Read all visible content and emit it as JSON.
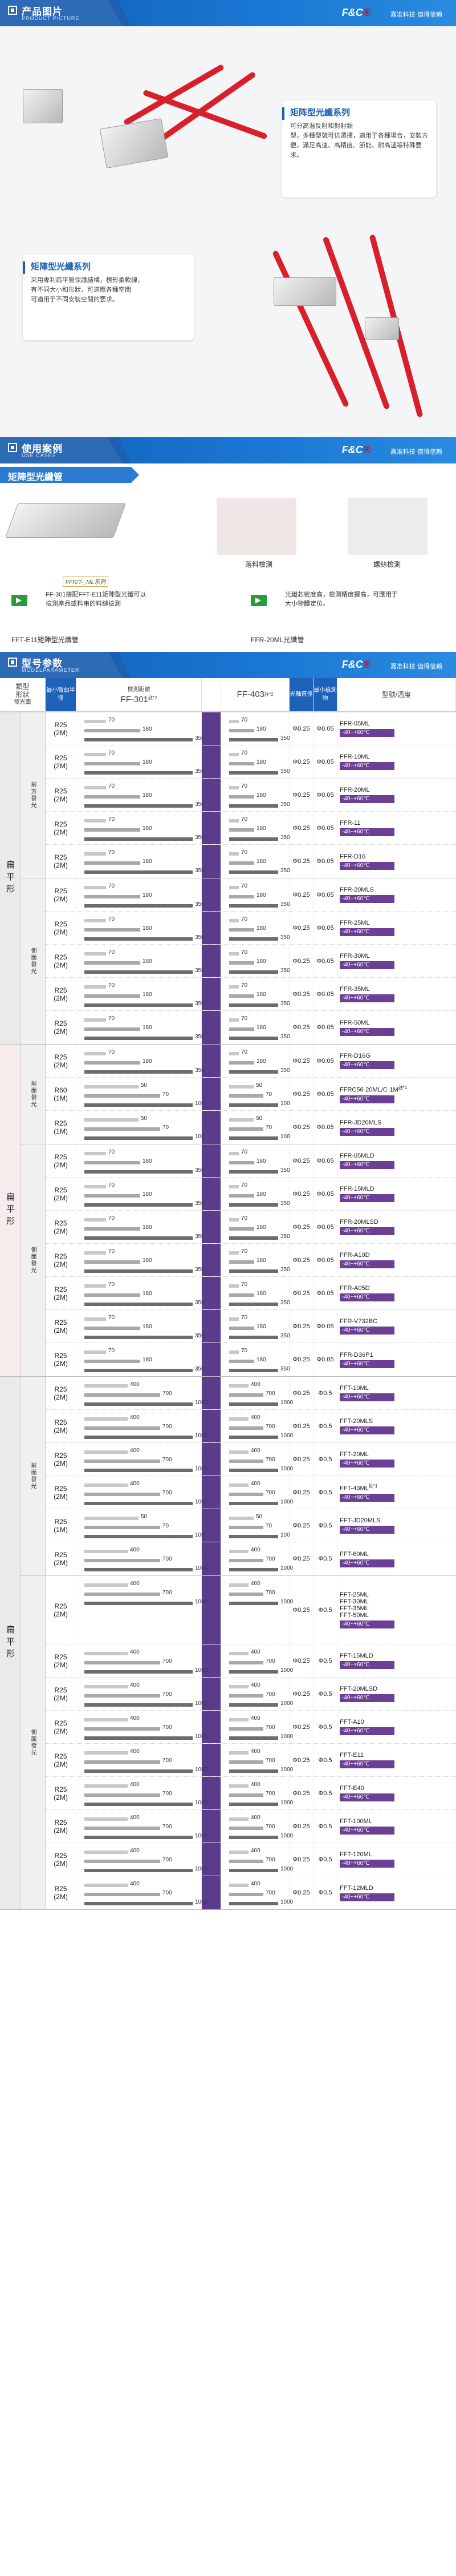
{
  "banners": {
    "picture": {
      "title": "产品图片",
      "subtitle": "PRODUCT PICTURE"
    },
    "cases": {
      "title": "使用案例",
      "subtitle": "USE CASES"
    },
    "params": {
      "title": "型号参数",
      "subtitle": "MODELPARAMETER"
    },
    "logo_prefix": "F&C",
    "logo_mark": "®",
    "slogan": "嘉准科技 值得信赖"
  },
  "hero": {
    "box1": {
      "title": "矩阵型光纖系列",
      "body": "可分高温反射和對射類\n型，多種型號可供選擇，適用于各種場合，安裝方便，滿足高速、高精度、節能、耐高溫等特殊要求。"
    },
    "box2": {
      "title": "矩陣型光纖系列",
      "body": "采用專利扁平管保護結構，楞形柔軟線，\n有不同大小和形狀，可適應各種空間\n可適用于不同安裝空間的要求。"
    }
  },
  "cases": {
    "section_title": "矩陣型光纖管",
    "labels": {
      "c1": "落料檢測",
      "c2": "螺絲檢測"
    },
    "tag": "FFR/T-_ML系列",
    "desc_left": "FF-301搭配FFT-E11矩陣型光纖可以\n檢測產品或料串的料縫檢測",
    "desc_right": "光纖芯密度高，檢測精度提高，可應用于\n大小物體定位。",
    "caption_left": "FFT-E11矩陣型光纖管",
    "caption_right": "FFR-20ML光纖管"
  },
  "table": {
    "head": {
      "type": "類型",
      "shape": "形狀",
      "shape2": "發光面",
      "bend": "最小彎曲半徑",
      "dist": "檢測距離",
      "amp1": "FF-301",
      "amp1_sup": "註*2",
      "amp2": "FF-403",
      "amp2_sup": "註*2",
      "dia": "光軸直徑",
      "dia2": "最小檢測物",
      "model": "型號/溫度"
    },
    "groups": [
      {
        "shape": "扁平形",
        "subs": [
          {
            "name": "前方發光",
            "rows": [
              {
                "r": "R25\n(2M)",
                "a": [
                  70,
                  180,
                  350
                ],
                "b": [
                  70,
                  180,
                  350
                ],
                "d1": "Φ0.25",
                "d2": "Φ0.05",
                "model": "FFR-05ML",
                "temp": "-40~+60℃"
              },
              {
                "r": "R25\n(2M)",
                "a": [
                  70,
                  180,
                  350
                ],
                "b": [
                  70,
                  180,
                  350
                ],
                "d1": "Φ0.25",
                "d2": "Φ0.05",
                "model": "FFR-10ML",
                "temp": "-40~+60℃"
              },
              {
                "r": "R25\n(2M)",
                "a": [
                  70,
                  180,
                  350
                ],
                "b": [
                  70,
                  180,
                  350
                ],
                "d1": "Φ0.25",
                "d2": "Φ0.05",
                "model": "FFR-20ML",
                "temp": "-40~+60℃"
              },
              {
                "r": "R25\n(2M)",
                "a": [
                  70,
                  180,
                  350
                ],
                "b": [
                  70,
                  180,
                  350
                ],
                "d1": "Φ0.25",
                "d2": "Φ0.05",
                "model": "FFR-11",
                "temp": "-40~+60℃"
              },
              {
                "r": "R25\n(2M)",
                "a": [
                  70,
                  180,
                  350
                ],
                "b": [
                  70,
                  180,
                  350
                ],
                "d1": "Φ0.25",
                "d2": "Φ0.05",
                "model": "FFR-D16",
                "temp": "-40~+60℃"
              }
            ]
          },
          {
            "name": "側面發光",
            "rows": [
              {
                "r": "R25\n(2M)",
                "a": [
                  70,
                  180,
                  350
                ],
                "b": [
                  70,
                  180,
                  350
                ],
                "d1": "Φ0.25",
                "d2": "Φ0.05",
                "model": "FFR-20MLS",
                "temp": "-40~+60℃"
              },
              {
                "r": "R25\n(2M)",
                "a": [
                  70,
                  180,
                  350
                ],
                "b": [
                  70,
                  180,
                  350
                ],
                "d1": "Φ0.25",
                "d2": "Φ0.05",
                "model": "FFR-25ML",
                "temp": "-40~+60℃"
              },
              {
                "r": "R25\n(2M)",
                "a": [
                  70,
                  180,
                  350
                ],
                "b": [
                  70,
                  180,
                  350
                ],
                "d1": "Φ0.25",
                "d2": "Φ0.05",
                "model": "FFR-30ML",
                "temp": "-40~+60℃"
              },
              {
                "r": "R25\n(2M)",
                "a": [
                  70,
                  180,
                  350
                ],
                "b": [
                  70,
                  180,
                  350
                ],
                "d1": "Φ0.25",
                "d2": "Φ0.05",
                "model": "FFR-35ML",
                "temp": "-40~+60℃"
              },
              {
                "r": "R25\n(2M)",
                "a": [
                  70,
                  180,
                  350
                ],
                "b": [
                  70,
                  180,
                  350
                ],
                "d1": "Φ0.25",
                "d2": "Φ0.05",
                "model": "FFR-50ML",
                "temp": "-40~+60℃"
              }
            ]
          }
        ]
      },
      {
        "shape": "扁平形",
        "subs": [
          {
            "name": "前面發光",
            "rows": [
              {
                "r": "R25\n(2M)",
                "a": [
                  70,
                  180,
                  350
                ],
                "b": [
                  70,
                  180,
                  350
                ],
                "d1": "Φ0.25",
                "d2": "Φ0.05",
                "model": "FFR-D16G",
                "temp": "-40~+60℃"
              },
              {
                "r": "R60\n(1M)",
                "a": [
                  50,
                  70,
                  100
                ],
                "b": [
                  50,
                  70,
                  100
                ],
                "d1": "Φ0.25",
                "d2": "Φ0.05",
                "model": "FFRC56-20ML/C-1M",
                "note": "註*1",
                "temp": "-40~+60℃"
              },
              {
                "r": "R25\n(1M)",
                "a": [
                  50,
                  70,
                  100
                ],
                "b": [
                  50,
                  70,
                  100
                ],
                "d1": "Φ0.25",
                "d2": "Φ0.05",
                "model": "FFR-JD20MLS",
                "temp": "-40~+60℃"
              }
            ]
          },
          {
            "name": "側面發光",
            "rows": [
              {
                "r": "R25\n(2M)",
                "a": [
                  70,
                  180,
                  350
                ],
                "b": [
                  70,
                  180,
                  350
                ],
                "d1": "Φ0.25",
                "d2": "Φ0.05",
                "model": "FFR-05MLD",
                "temp": "-40~+60℃"
              },
              {
                "r": "R25\n(2M)",
                "a": [
                  70,
                  180,
                  350
                ],
                "b": [
                  70,
                  180,
                  350
                ],
                "d1": "Φ0.25",
                "d2": "Φ0.05",
                "model": "FFR-15MLD",
                "temp": "-40~+60℃"
              },
              {
                "r": "R25\n(2M)",
                "a": [
                  70,
                  180,
                  350
                ],
                "b": [
                  70,
                  180,
                  350
                ],
                "d1": "Φ0.25",
                "d2": "Φ0.05",
                "model": "FFR-20MLSD",
                "temp": "-40~+60℃"
              },
              {
                "r": "R25\n(2M)",
                "a": [
                  70,
                  180,
                  350
                ],
                "b": [
                  70,
                  180,
                  350
                ],
                "d1": "Φ0.25",
                "d2": "Φ0.05",
                "model": "FFR-A10D",
                "temp": "-40~+60℃"
              },
              {
                "r": "R25\n(2M)",
                "a": [
                  70,
                  180,
                  350
                ],
                "b": [
                  70,
                  180,
                  350
                ],
                "d1": "Φ0.25",
                "d2": "Φ0.05",
                "model": "FFR-A05D",
                "temp": "-40~+60℃"
              },
              {
                "r": "R25\n(2M)",
                "a": [
                  70,
                  180,
                  350
                ],
                "b": [
                  70,
                  180,
                  350
                ],
                "d1": "Φ0.25",
                "d2": "Φ0.05",
                "model": "FFR-V732BC",
                "temp": "-40~+60℃"
              },
              {
                "r": "R25\n(2M)",
                "a": [
                  70,
                  180,
                  350
                ],
                "b": [
                  70,
                  180,
                  350
                ],
                "d1": "Φ0.25",
                "d2": "Φ0.05",
                "model": "FFR-D36P1",
                "temp": "-40~+60℃"
              }
            ]
          }
        ]
      },
      {
        "shape": "扁平形",
        "subs": [
          {
            "name": "前面發光",
            "rows": [
              {
                "r": "R25\n(2M)",
                "a": [
                  400,
                  700,
                  1000
                ],
                "b": [
                  400,
                  700,
                  1000
                ],
                "d1": "Φ0.25",
                "d2": "Φ0.5",
                "model": "FFT-10ML",
                "temp": "-40~+60℃"
              },
              {
                "r": "R25\n(2M)",
                "a": [
                  400,
                  700,
                  1000
                ],
                "b": [
                  400,
                  700,
                  1000
                ],
                "d1": "Φ0.25",
                "d2": "Φ0.5",
                "model": "FFT-20MLS",
                "temp": "-40~+60℃"
              },
              {
                "r": "R25\n(2M)",
                "a": [
                  400,
                  700,
                  1000
                ],
                "b": [
                  400,
                  700,
                  1000
                ],
                "d1": "Φ0.25",
                "d2": "Φ0.5",
                "model": "FFT-20ML",
                "temp": "-40~+60℃"
              },
              {
                "r": "R25\n(2M)",
                "a": [
                  400,
                  700,
                  1000
                ],
                "b": [
                  400,
                  700,
                  1000
                ],
                "d1": "Φ0.25",
                "d2": "Φ0.5",
                "model": "FFT-43ML",
                "note": "註*1",
                "temp": "-40~+60℃"
              },
              {
                "r": "R25\n(1M)",
                "a": [
                  50,
                  70,
                  100
                ],
                "b": [
                  50,
                  70,
                  100
                ],
                "d1": "Φ0.25",
                "d2": "Φ0.5",
                "model": "FFT-JD20MLS",
                "temp": "-40~+60℃"
              },
              {
                "r": "R25\n(2M)",
                "a": [
                  400,
                  700,
                  1000
                ],
                "b": [
                  400,
                  700,
                  1000
                ],
                "d1": "Φ0.25",
                "d2": "Φ0.5",
                "model": "FFT-60ML",
                "temp": "-40~+60℃"
              }
            ]
          },
          {
            "name": "側面發光",
            "rows": [
              {
                "r": "R25\n(2M)",
                "a": [
                  400,
                  700,
                  1000
                ],
                "b": [
                  400,
                  700,
                  1000
                ],
                "d1": "Φ0.25",
                "d2": "Φ0.5",
                "model": "FFT-25ML\nFFT-30ML\nFFT-35ML\nFFT-50ML",
                "temp": "-40~+60℃",
                "tall": true
              },
              {
                "r": "R25\n(2M)",
                "a": [
                  400,
                  700,
                  1000
                ],
                "b": [
                  400,
                  700,
                  1000
                ],
                "d1": "Φ0.25",
                "d2": "Φ0.5",
                "model": "FFT-15MLD",
                "temp": "-40~+60℃"
              },
              {
                "r": "R25\n(2M)",
                "a": [
                  400,
                  700,
                  1000
                ],
                "b": [
                  400,
                  700,
                  1000
                ],
                "d1": "Φ0.25",
                "d2": "Φ0.5",
                "model": "FFT-20MLSD",
                "temp": "-40~+60℃"
              },
              {
                "r": "R25\n(2M)",
                "a": [
                  400,
                  700,
                  1000
                ],
                "b": [
                  400,
                  700,
                  1000
                ],
                "d1": "Φ0.25",
                "d2": "Φ0.5",
                "model": "FFT-A10",
                "temp": "-40~+60℃"
              },
              {
                "r": "R25\n(2M)",
                "a": [
                  400,
                  700,
                  1000
                ],
                "b": [
                  400,
                  700,
                  1000
                ],
                "d1": "Φ0.25",
                "d2": "Φ0.5",
                "model": "FFT-E11",
                "temp": "-40~+60℃"
              },
              {
                "r": "R25\n(2M)",
                "a": [
                  400,
                  700,
                  1000
                ],
                "b": [
                  400,
                  700,
                  1000
                ],
                "d1": "Φ0.25",
                "d2": "Φ0.5",
                "model": "FFT-E40",
                "temp": "-40~+60℃"
              },
              {
                "r": "R25\n(2M)",
                "a": [
                  400,
                  700,
                  1000
                ],
                "b": [
                  400,
                  700,
                  1000
                ],
                "d1": "Φ0.25",
                "d2": "Φ0.5",
                "model": "FFT-100ML",
                "temp": "-40~+60℃"
              },
              {
                "r": "R25\n(2M)",
                "a": [
                  400,
                  700,
                  1000
                ],
                "b": [
                  400,
                  700,
                  1000
                ],
                "d1": "Φ0.25",
                "d2": "Φ0.5",
                "model": "FFT-120ML",
                "temp": "-40~+60℃"
              },
              {
                "r": "R25\n(2M)",
                "a": [
                  400,
                  700,
                  1000
                ],
                "b": [
                  400,
                  700,
                  1000
                ],
                "d1": "Φ0.25",
                "d2": "Φ0.5",
                "model": "FFT-12MLD",
                "temp": "-40~+60℃"
              }
            ]
          }
        ]
      }
    ]
  }
}
